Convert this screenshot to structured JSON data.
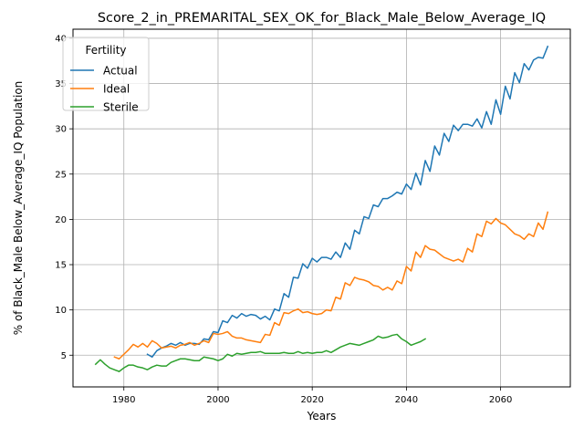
{
  "chart_data": {
    "type": "line",
    "title": "Score_2_in_PREMARITAL_SEX_OK_for_Black_Male_Below_Average_IQ",
    "xlabel": "Years",
    "ylabel": "% of Black_Male Below_Average_IQ Population",
    "xlim": [
      1969.2,
      2074.8
    ],
    "ylim": [
      1.5,
      41.0
    ],
    "xticks": [
      1980,
      2000,
      2020,
      2040,
      2060
    ],
    "xtick_labels": [
      "1980",
      "2000",
      "2020",
      "2040",
      "2060"
    ],
    "yticks": [
      5,
      10,
      15,
      20,
      25,
      30,
      35,
      40
    ],
    "ytick_labels": [
      "5",
      "10",
      "15",
      "20",
      "25",
      "30",
      "35",
      "40"
    ],
    "grid": true,
    "legend": {
      "title": "Fertility",
      "placement": "top-left"
    },
    "series": [
      {
        "name": "Actual",
        "color": "#1f77b4",
        "x": [
          1985,
          1986,
          1987,
          1988,
          1989,
          1990,
          1991,
          1992,
          1993,
          1994,
          1995,
          1996,
          1997,
          1998,
          1999,
          2000,
          2001,
          2002,
          2003,
          2004,
          2005,
          2006,
          2007,
          2008,
          2009,
          2010,
          2011,
          2012,
          2013,
          2014,
          2015,
          2016,
          2017,
          2018,
          2019,
          2020,
          2021,
          2022,
          2023,
          2024,
          2025,
          2026,
          2027,
          2028,
          2029,
          2030,
          2031,
          2032,
          2033,
          2034,
          2035,
          2036,
          2037,
          2038,
          2039,
          2040,
          2041,
          2042,
          2043,
          2044,
          2045,
          2046,
          2047,
          2048,
          2049,
          2050,
          2051,
          2052,
          2053,
          2054,
          2055,
          2056,
          2057,
          2058,
          2059,
          2060,
          2061,
          2062,
          2063,
          2064,
          2065,
          2066,
          2067,
          2068,
          2069,
          2070
        ],
        "values": [
          5.1,
          4.8,
          5.5,
          5.8,
          6.0,
          6.3,
          6.1,
          6.4,
          6.1,
          6.3,
          6.3,
          6.2,
          6.8,
          6.7,
          7.6,
          7.5,
          8.8,
          8.6,
          9.4,
          9.1,
          9.6,
          9.3,
          9.5,
          9.4,
          9.0,
          9.3,
          8.9,
          10.1,
          9.9,
          11.8,
          11.4,
          13.6,
          13.5,
          15.1,
          14.6,
          15.7,
          15.3,
          15.8,
          15.8,
          15.6,
          16.4,
          15.8,
          17.4,
          16.7,
          18.8,
          18.4,
          20.3,
          20.1,
          21.6,
          21.4,
          22.3,
          22.3,
          22.6,
          23.0,
          22.8,
          23.9,
          23.3,
          25.1,
          23.8,
          26.5,
          25.3,
          28.1,
          27.1,
          29.5,
          28.6,
          30.4,
          29.8,
          30.5,
          30.5,
          30.3,
          31.1,
          30.1,
          31.9,
          30.5,
          33.2,
          31.6,
          34.7,
          33.3,
          36.2,
          35.1,
          37.2,
          36.5,
          37.6,
          37.9,
          37.8,
          39.1
        ]
      },
      {
        "name": "Ideal",
        "color": "#ff7f0e",
        "x": [
          1978,
          1979,
          1980,
          1981,
          1982,
          1983,
          1984,
          1985,
          1986,
          1987,
          1988,
          1989,
          1990,
          1991,
          1992,
          1993,
          1994,
          1995,
          1996,
          1997,
          1998,
          1999,
          2000,
          2001,
          2002,
          2003,
          2004,
          2005,
          2006,
          2007,
          2008,
          2009,
          2010,
          2011,
          2012,
          2013,
          2014,
          2015,
          2016,
          2017,
          2018,
          2019,
          2020,
          2021,
          2022,
          2023,
          2024,
          2025,
          2026,
          2027,
          2028,
          2029,
          2030,
          2031,
          2032,
          2033,
          2034,
          2035,
          2036,
          2037,
          2038,
          2039,
          2040,
          2041,
          2042,
          2043,
          2044,
          2045,
          2046,
          2047,
          2048,
          2049,
          2050,
          2051,
          2052,
          2053,
          2054,
          2055,
          2056,
          2057,
          2058,
          2059,
          2060,
          2061,
          2062,
          2063,
          2064,
          2065,
          2066,
          2067,
          2068,
          2069,
          2070
        ],
        "values": [
          4.8,
          4.6,
          5.1,
          5.6,
          6.2,
          5.9,
          6.3,
          5.9,
          6.6,
          6.3,
          5.8,
          5.9,
          6.0,
          5.8,
          6.1,
          6.2,
          6.4,
          6.1,
          6.3,
          6.6,
          6.4,
          7.4,
          7.3,
          7.4,
          7.6,
          7.1,
          6.9,
          6.9,
          6.7,
          6.6,
          6.5,
          6.4,
          7.3,
          7.2,
          8.6,
          8.3,
          9.7,
          9.6,
          9.9,
          10.1,
          9.7,
          9.8,
          9.6,
          9.5,
          9.6,
          10.0,
          9.9,
          11.4,
          11.2,
          13.0,
          12.7,
          13.6,
          13.4,
          13.3,
          13.1,
          12.7,
          12.6,
          12.2,
          12.5,
          12.2,
          13.2,
          12.9,
          14.8,
          14.3,
          16.4,
          15.8,
          17.1,
          16.7,
          16.6,
          16.2,
          15.8,
          15.6,
          15.4,
          15.6,
          15.3,
          16.8,
          16.4,
          18.4,
          18.1,
          19.8,
          19.5,
          20.1,
          19.6,
          19.4,
          18.9,
          18.4,
          18.2,
          17.8,
          18.4,
          18.1,
          19.6,
          18.9,
          20.8
        ]
      },
      {
        "name": "Sterile",
        "color": "#2ca02c",
        "x": [
          1974,
          1975,
          1976,
          1977,
          1978,
          1979,
          1980,
          1981,
          1982,
          1983,
          1984,
          1985,
          1986,
          1987,
          1988,
          1989,
          1990,
          1991,
          1992,
          1993,
          1994,
          1995,
          1996,
          1997,
          1998,
          1999,
          2000,
          2001,
          2002,
          2003,
          2004,
          2005,
          2006,
          2007,
          2008,
          2009,
          2010,
          2011,
          2012,
          2013,
          2014,
          2015,
          2016,
          2017,
          2018,
          2019,
          2020,
          2021,
          2022,
          2023,
          2024,
          2025,
          2026,
          2027,
          2028,
          2029,
          2030,
          2031,
          2032,
          2033,
          2034,
          2035,
          2036,
          2037,
          2038,
          2039,
          2040,
          2041,
          2042,
          2043,
          2044
        ],
        "values": [
          4.0,
          4.5,
          4.0,
          3.6,
          3.4,
          3.2,
          3.6,
          3.9,
          3.9,
          3.7,
          3.6,
          3.4,
          3.7,
          3.9,
          3.8,
          3.8,
          4.2,
          4.4,
          4.6,
          4.6,
          4.5,
          4.4,
          4.4,
          4.8,
          4.7,
          4.6,
          4.4,
          4.6,
          5.1,
          4.9,
          5.2,
          5.1,
          5.2,
          5.3,
          5.3,
          5.4,
          5.2,
          5.2,
          5.2,
          5.2,
          5.3,
          5.2,
          5.2,
          5.4,
          5.2,
          5.3,
          5.2,
          5.3,
          5.3,
          5.5,
          5.3,
          5.6,
          5.9,
          6.1,
          6.3,
          6.2,
          6.1,
          6.3,
          6.5,
          6.7,
          7.1,
          6.9,
          7.0,
          7.2,
          7.3,
          6.8,
          6.5,
          6.1,
          6.3,
          6.5,
          6.8
        ]
      }
    ]
  }
}
